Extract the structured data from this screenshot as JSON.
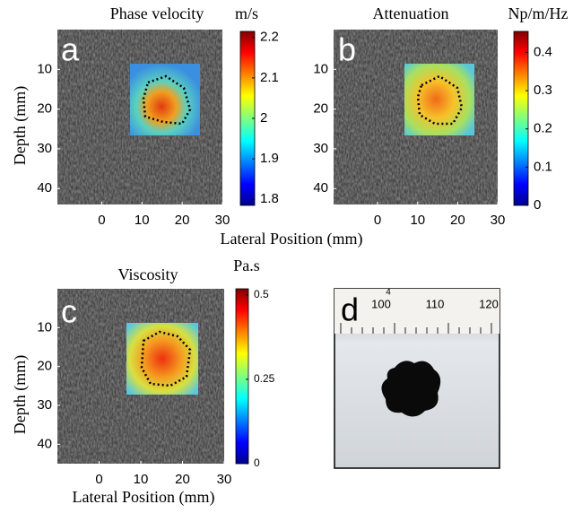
{
  "chart_data": [
    {
      "type": "heatmap",
      "label": "a",
      "title": "Phase velocity",
      "colorbar_label": "m/s",
      "xlim": [
        -11,
        30
      ],
      "ylim": [
        0,
        44
      ],
      "xticks": [
        0,
        10,
        20,
        30
      ],
      "yticks": [
        10,
        20,
        30,
        40
      ],
      "clim": [
        1.785,
        2.215
      ],
      "cticks": [
        1.8,
        1.9,
        2,
        2.1,
        2.2
      ],
      "ylabel": "Depth (mm)",
      "xlabel": "Lateral Position (mm)"
    },
    {
      "type": "heatmap",
      "label": "b",
      "title": "Attenuation",
      "colorbar_label": "Np/m/Hz",
      "xlim": [
        -11,
        30
      ],
      "ylim": [
        0,
        44
      ],
      "xticks": [
        0,
        10,
        20,
        30
      ],
      "yticks": [
        10,
        20,
        30,
        40
      ],
      "clim": [
        0,
        0.455
      ],
      "cticks": [
        0,
        0.1,
        0.2,
        0.3,
        0.4
      ]
    },
    {
      "type": "heatmap",
      "label": "c",
      "title": "Viscosity",
      "colorbar_label": "Pa.s",
      "xlim": [
        -10,
        30
      ],
      "ylim": [
        0,
        45
      ],
      "xticks": [
        0,
        10,
        20,
        30
      ],
      "yticks": [
        10,
        20,
        30,
        40
      ],
      "clim": [
        0,
        0.518
      ],
      "cticks": [
        0,
        0.25,
        0.5
      ],
      "ylabel": "Depth (mm)",
      "xlabel": "Lateral Position (mm)"
    },
    {
      "type": "photo",
      "label": "d",
      "ruler_labels": [
        "4",
        "100",
        "110",
        "120"
      ]
    }
  ]
}
